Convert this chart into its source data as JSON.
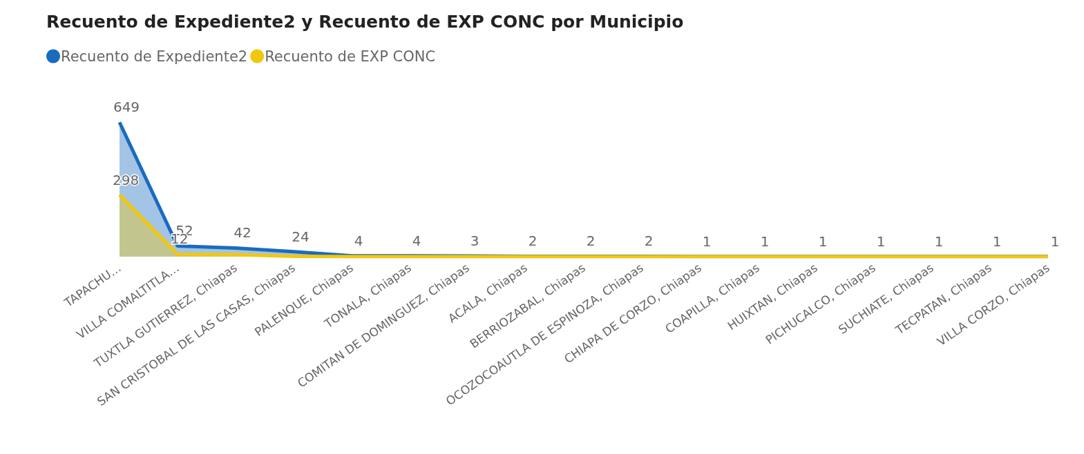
{
  "chart_data": {
    "type": "area",
    "title": "Recuento de Expediente2 y Recuento de EXP CONC por Municipio",
    "categories": [
      "TAPACHU…",
      "VILLA COMALTITLA…",
      "TUXTLA GUTIERREZ, Chiapas",
      "SAN CRISTOBAL DE LAS CASAS, Chiapas",
      "PALENQUE, Chiapas",
      "TONALA, Chiapas",
      "COMITAN DE DOMINGUEZ, Chiapas",
      "ACALA, Chiapas",
      "BERRIOZABAL, Chiapas",
      "OCOZOCOAUTLA DE ESPINOZA, Chiapas",
      "CHIAPA DE CORZO, Chiapas",
      "COAPILLA, Chiapas",
      "HUIXTAN, Chiapas",
      "PICHUCALCO, Chiapas",
      "SUCHIATE, Chiapas",
      "TECPATAN, Chiapas",
      "VILLA CORZO, Chiapas"
    ],
    "series": [
      {
        "name": "Recuento de Expediente2",
        "color": "#1a6bbf",
        "values": [
          649,
          52,
          42,
          24,
          4,
          4,
          3,
          2,
          2,
          2,
          1,
          1,
          1,
          1,
          1,
          1,
          1
        ]
      },
      {
        "name": "Recuento de EXP CONC",
        "color": "#f2c80f",
        "values": [
          298,
          12,
          10,
          2,
          0,
          0,
          0,
          0,
          0,
          0,
          0,
          0,
          0,
          0,
          0,
          0,
          0
        ],
        "value_labels": [
          "298",
          "12",
          null,
          null,
          null,
          null,
          null,
          null,
          null,
          null,
          null,
          null,
          null,
          null,
          null,
          null,
          null
        ]
      }
    ],
    "data_labels": true,
    "legend": "top left",
    "grid": false,
    "marker": "none"
  }
}
